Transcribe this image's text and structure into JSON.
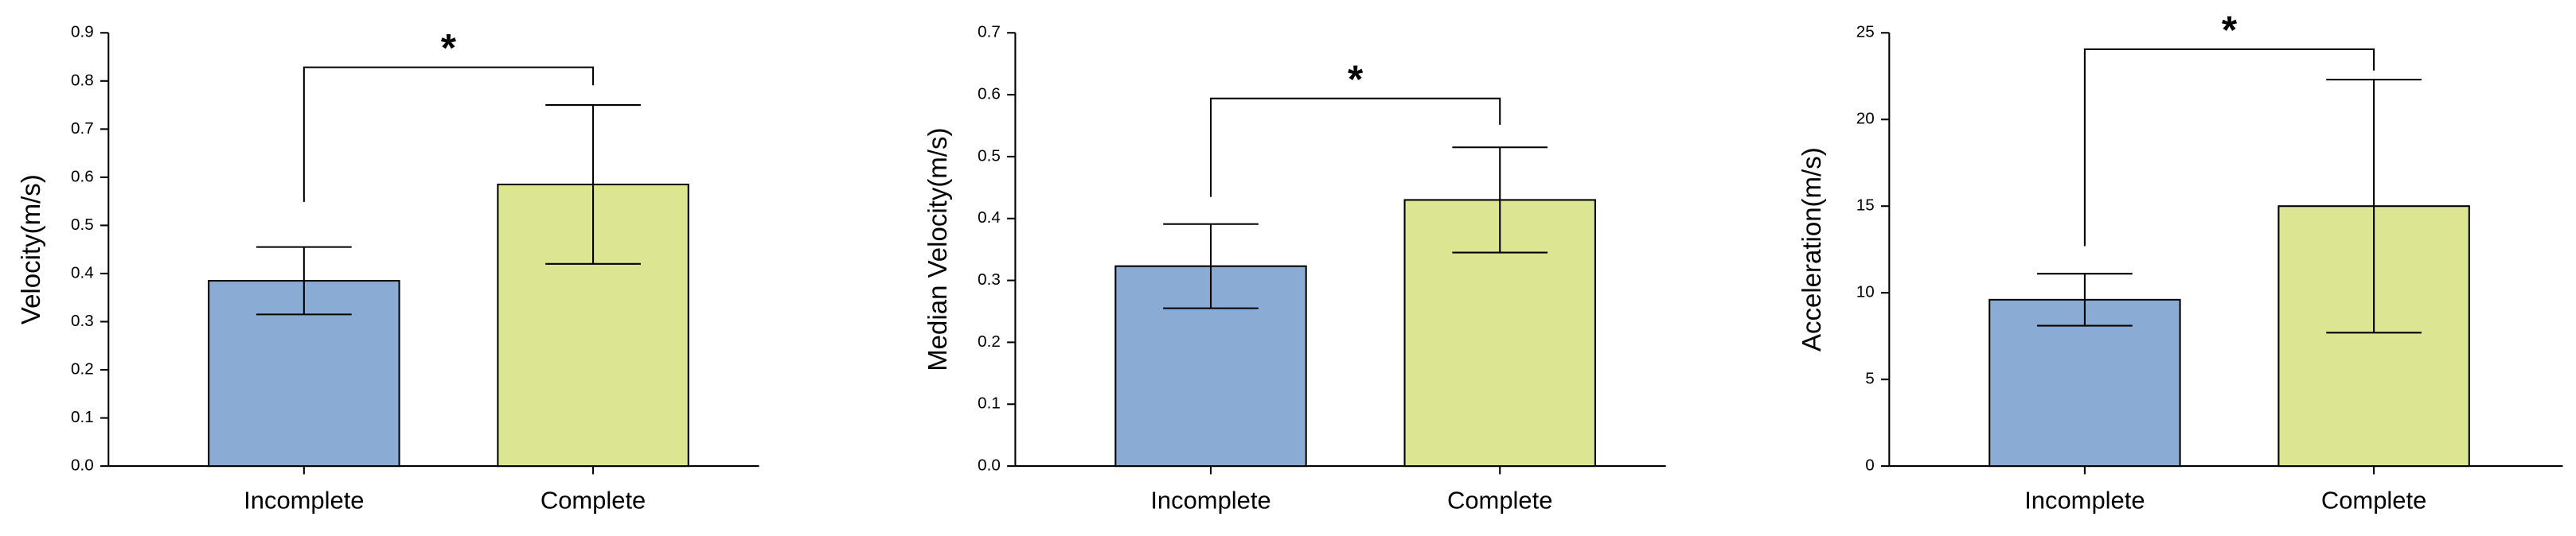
{
  "chart_data": [
    {
      "type": "bar",
      "y_label": "Velocity(m/s)",
      "categories": [
        "Incomplete",
        "Complete"
      ],
      "values": [
        0.385,
        0.585
      ],
      "errors": [
        0.07,
        0.165
      ],
      "colors": [
        "#8aabd3",
        "#dce692"
      ],
      "ylim": [
        0,
        0.9
      ],
      "yticks": [
        {
          "value": 0,
          "label": "0.0"
        },
        0.1,
        0.2,
        0.3,
        0.4,
        0.5,
        0.6,
        0.7,
        0.8,
        0.9
      ],
      "annotation": "*"
    },
    {
      "type": "bar",
      "y_label": "Median Velocity(m/s)",
      "categories": [
        "Incomplete",
        "Complete"
      ],
      "values": [
        0.323,
        0.43
      ],
      "errors": [
        0.068,
        0.085
      ],
      "colors": [
        "#8aabd3",
        "#dce692"
      ],
      "ylim": [
        0,
        0.7
      ],
      "yticks": [
        {
          "value": 0,
          "label": "0.0"
        },
        0.1,
        0.2,
        0.3,
        0.4,
        0.5,
        0.6,
        0.7
      ],
      "annotation": "*"
    },
    {
      "type": "bar",
      "y_label": "Acceleration(m/s)",
      "categories": [
        "Incomplete",
        "Complete"
      ],
      "values": [
        9.6,
        15
      ],
      "errors": [
        1.5,
        7.3
      ],
      "colors": [
        "#8aabd3",
        "#dce692"
      ],
      "ylim": [
        0,
        25
      ],
      "yticks": [
        0,
        5,
        10,
        15,
        20,
        25
      ],
      "annotation": "*"
    }
  ]
}
